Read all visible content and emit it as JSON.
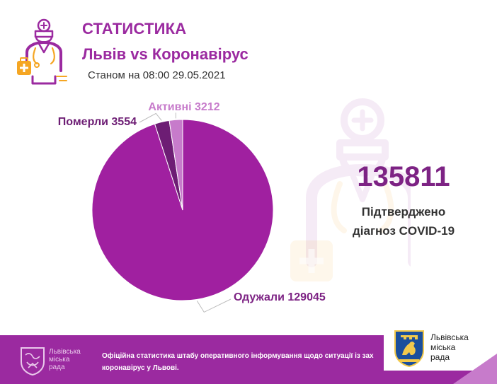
{
  "header": {
    "title": "СТАТИСТИКА",
    "subtitle": "Львів vs Коронавірус",
    "as_of": "Станом на 08:00 29.05.2021"
  },
  "summary": {
    "confirmed": "135811",
    "caption_line1": "Підтверджено",
    "caption_line2": "діагноз COVID-19"
  },
  "chart_data": {
    "type": "pie",
    "slices": [
      {
        "label": "Одужали 129045",
        "name": "Одужали",
        "value": 129045,
        "color": "#a020a0"
      },
      {
        "label": "Померли 3554",
        "name": "Померли",
        "value": 3554,
        "color": "#6d1d74"
      },
      {
        "label": "Активні 3212",
        "name": "Активні",
        "value": 3212,
        "color": "#c77bcb"
      }
    ],
    "label_colors": [
      "#7d2384",
      "#6d1d74",
      "#c77bcb"
    ]
  },
  "footer": {
    "logo_text_line1": "Львівська",
    "logo_text_line2": "міська",
    "logo_text_line3": "рада",
    "text": "Офіційна статистика штабу оперативного інформування щодо ситуації із зах коронавірус у Львові.",
    "brand_line1": "Львівська",
    "brand_line2": "міська",
    "brand_line3": "рада"
  },
  "colors": {
    "brand": "#9b2aa0",
    "dark": "#7d2384",
    "light": "#c77bcb",
    "accent_orange": "#f5a623"
  },
  "icons": {
    "header": "doctor-icon",
    "background": "doctor-watermark-icon",
    "footer_logo": "city-council-emblem-icon",
    "brand_logo": "lion-coat-of-arms-icon"
  }
}
